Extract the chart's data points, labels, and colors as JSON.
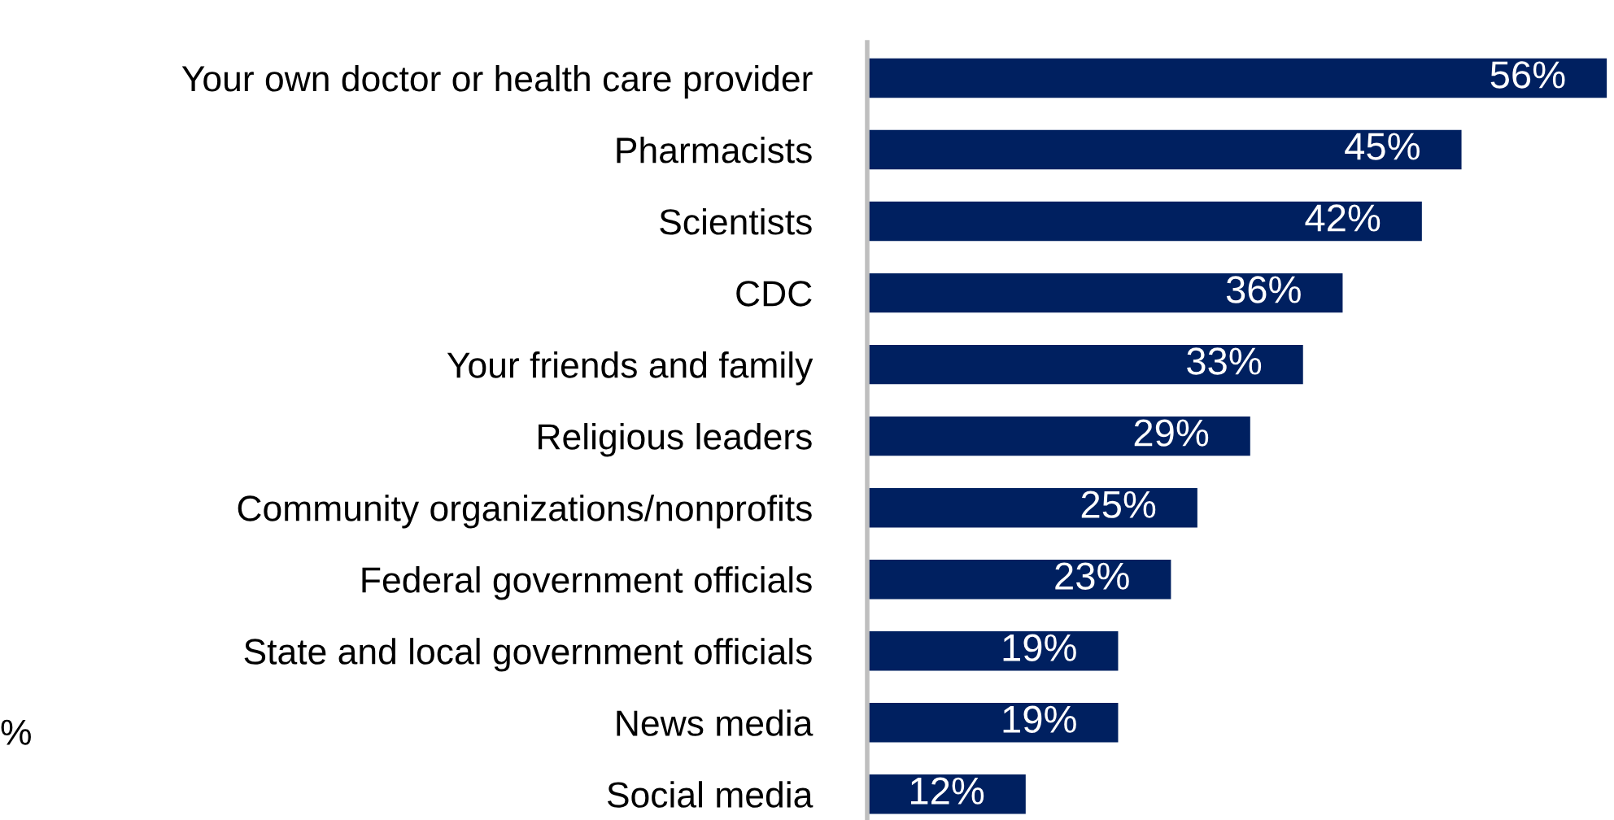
{
  "chart_data": {
    "type": "bar",
    "orientation": "horizontal",
    "categories": [
      "Your own doctor or health care provider",
      "Pharmacists",
      "Scientists",
      "CDC",
      "Your friends and family",
      "Religious leaders",
      "Community organizations/nonprofits",
      "Federal government officials",
      "State and local government officials",
      "News media",
      "Social media"
    ],
    "values": [
      56,
      45,
      42,
      36,
      33,
      29,
      25,
      23,
      19,
      19,
      12
    ],
    "value_labels": [
      "56%",
      "45%",
      "42%",
      "36%",
      "33%",
      "29%",
      "25%",
      "23%",
      "19%",
      "19%",
      "12%"
    ],
    "color": "#002060",
    "xlim": [
      0,
      56.3
    ],
    "tick_labels": "y",
    "grid": false,
    "annotations": [
      "%"
    ]
  }
}
